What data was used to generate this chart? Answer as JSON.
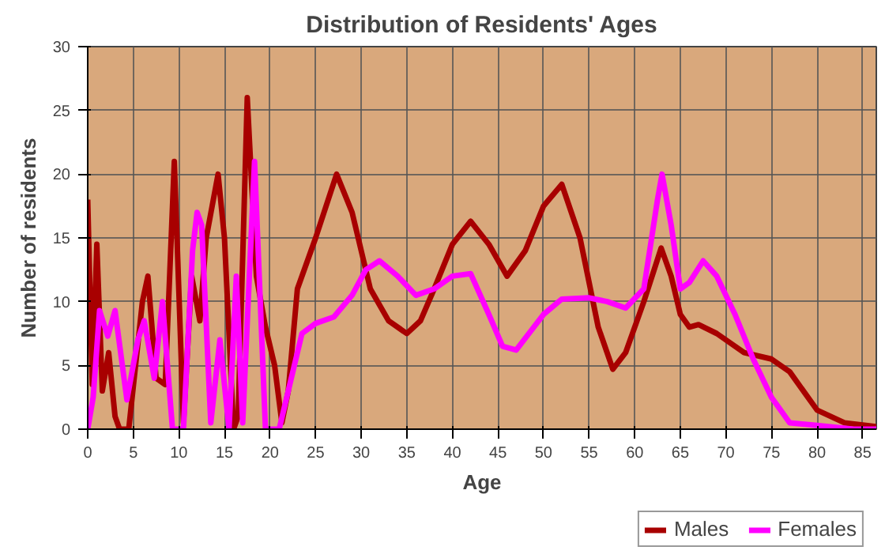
{
  "chart_data": {
    "type": "line",
    "title": "Distribution of Residents' Ages",
    "xlabel": "Age",
    "ylabel": "Number of residents",
    "xlim": [
      0,
      86.5
    ],
    "ylim": [
      0,
      30
    ],
    "xticks": [
      0,
      5,
      10,
      15,
      20,
      25,
      30,
      35,
      40,
      45,
      50,
      55,
      60,
      65,
      70,
      75,
      80,
      85
    ],
    "yticks": [
      0,
      5,
      10,
      15,
      20,
      25,
      30
    ],
    "grid": true,
    "legend": "bottom right",
    "line_style": "solid",
    "marker": "none",
    "series": [
      {
        "name": "Males",
        "color": "#a80000",
        "x": [
          0,
          0.5,
          1,
          1.6,
          2.3,
          3,
          3.5,
          4.5,
          6,
          6.6,
          7.5,
          8.5,
          9.5,
          10.5,
          11.4,
          12.3,
          13,
          14.3,
          15,
          16,
          16.5,
          17.5,
          18.5,
          19.5,
          20.5,
          21.3,
          22,
          23,
          25,
          27.3,
          29,
          31,
          33,
          35,
          36.5,
          38,
          40,
          42,
          44,
          46,
          48,
          50,
          52,
          54,
          56,
          57.6,
          59,
          61,
          62.9,
          64,
          65,
          66,
          67,
          69,
          72,
          75,
          77,
          80,
          83,
          86.5
        ],
        "values": [
          18,
          3.5,
          14.5,
          3,
          6,
          1,
          0,
          0,
          10,
          12,
          4,
          3.5,
          21,
          0.5,
          12,
          8.5,
          15,
          20,
          15,
          0,
          1,
          26,
          12,
          8,
          5,
          0.5,
          3,
          11,
          15,
          20,
          17,
          11,
          8.5,
          7.5,
          8.5,
          11,
          14.5,
          16.3,
          14.5,
          12,
          14,
          17.5,
          19.2,
          15,
          8,
          4.7,
          6,
          10,
          14.2,
          12,
          9,
          8,
          8.2,
          7.5,
          6,
          5.5,
          4.5,
          1.5,
          0.5,
          0.2
        ]
      },
      {
        "name": "Females",
        "color": "#ff00ff",
        "x": [
          0,
          0.6,
          1.3,
          2.2,
          3,
          4.3,
          5.5,
          6.2,
          7.3,
          8.2,
          9.3,
          10.5,
          11.5,
          12,
          12.5,
          13.5,
          14.5,
          15.5,
          16.3,
          17,
          18.3,
          19.5,
          21,
          22,
          23.5,
          25,
          27,
          29,
          30.5,
          32,
          34,
          36,
          38,
          40,
          42,
          44,
          45.5,
          47,
          50,
          52,
          55,
          57,
          59,
          61,
          62.5,
          63,
          64,
          65,
          66,
          67.5,
          69,
          71,
          73,
          75,
          77,
          80,
          84,
          86.5
        ],
        "values": [
          0,
          2.5,
          9.3,
          7.3,
          9.3,
          2.3,
          7,
          8.5,
          4,
          10,
          0,
          0,
          14,
          17,
          16,
          0.5,
          7,
          0,
          12,
          0.5,
          21,
          0,
          0,
          3,
          7.5,
          8.3,
          8.8,
          10.5,
          12.5,
          13.2,
          12,
          10.5,
          11,
          12,
          12.2,
          9,
          6.5,
          6.2,
          9,
          10.2,
          10.3,
          10,
          9.5,
          11,
          18,
          20,
          16,
          11,
          11.5,
          13.2,
          12,
          9,
          5.5,
          2.5,
          0.5,
          0.3,
          0,
          0
        ]
      }
    ]
  }
}
